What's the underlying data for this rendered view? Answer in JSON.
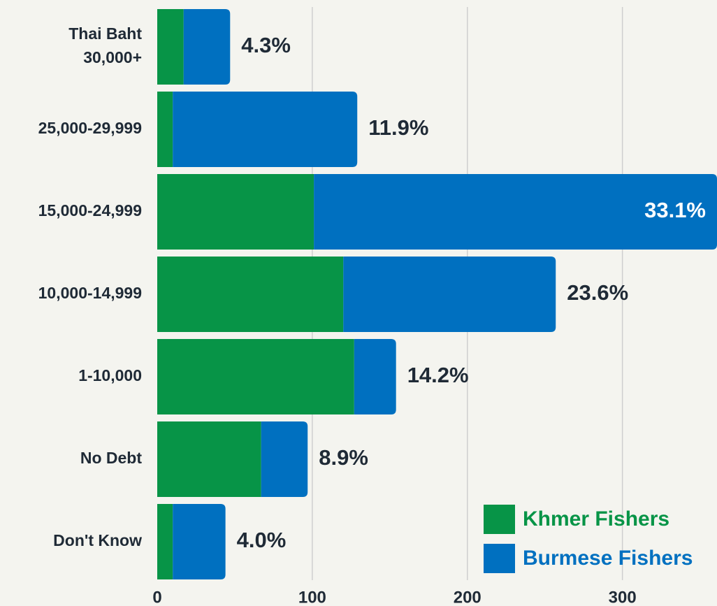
{
  "chart_data": {
    "type": "stacked-barh",
    "categories": [
      "Thai Baht\n30,000+",
      "25,000-29,999",
      "15,000-24,999",
      "10,000-14,999",
      "1-10,000",
      "No Debt",
      "Don't Know"
    ],
    "series": [
      {
        "name": "Khmer Fishers",
        "color": "#079447",
        "values": [
          17,
          10,
          101,
          120,
          127,
          67,
          10
        ]
      },
      {
        "name": "Burmese Fishers",
        "color": "#0070c0",
        "values": [
          30,
          119,
          260,
          137,
          27,
          30,
          34
        ]
      }
    ],
    "percent_labels": [
      "4.3%",
      "11.9%",
      "33.1%",
      "23.6%",
      "14.2%",
      "8.9%",
      "4.0%"
    ],
    "xlim": [
      0,
      361
    ],
    "xticks": [
      0,
      100,
      200,
      300
    ],
    "grid": true,
    "legend": "lower right"
  }
}
